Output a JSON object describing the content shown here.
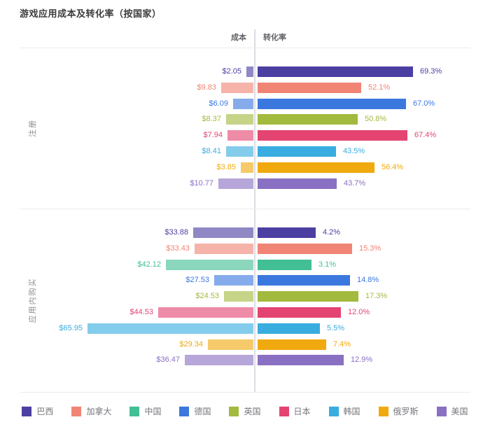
{
  "title": "游戏应用成本及转化率（按国家）",
  "header": {
    "cost": "成本",
    "conversion": "转化率"
  },
  "countries": {
    "巴西": "#4b3fa2",
    "加拿大": "#f08575",
    "中国": "#43bf96",
    "德国": "#3b78de",
    "英国": "#a2ba3e",
    "日本": "#e34471",
    "韩国": "#39ace0",
    "俄罗斯": "#f0a90f",
    "美国": "#8a70c2"
  },
  "legend": [
    "巴西",
    "加拿大",
    "中国",
    "德国",
    "英国",
    "日本",
    "韩国",
    "俄罗斯",
    "美国"
  ],
  "chart_data": {
    "type": "bar",
    "variant": "bidirectional-tornado",
    "title": "游戏应用成本及转化率（按国家）",
    "left_axis": {
      "label": "成本",
      "unit": "$",
      "direction": "right-to-left"
    },
    "right_axis": {
      "label": "转化率",
      "unit": "%",
      "direction": "left-to-right"
    },
    "grid": "section dividers only",
    "legend_position": "bottom-center",
    "sections": [
      {
        "label": "注册",
        "rows": [
          {
            "country": "巴西",
            "cost": 2.05,
            "cost_label": "$2.05",
            "conversion": 69.3,
            "conversion_label": "69.3%"
          },
          {
            "country": "加拿大",
            "cost": 9.83,
            "cost_label": "$9.83",
            "conversion": 52.1,
            "conversion_label": "52.1%"
          },
          {
            "country": "德国",
            "cost": 6.09,
            "cost_label": "$6.09",
            "conversion": 67.0,
            "conversion_label": "67.0%"
          },
          {
            "country": "英国",
            "cost": 8.37,
            "cost_label": "$8.37",
            "conversion": 50.8,
            "conversion_label": "50.8%"
          },
          {
            "country": "日本",
            "cost": 7.94,
            "cost_label": "$7.94",
            "conversion": 67.4,
            "conversion_label": "67.4%"
          },
          {
            "country": "韩国",
            "cost": 8.41,
            "cost_label": "$8.41",
            "conversion": 43.5,
            "conversion_label": "43.5%"
          },
          {
            "country": "俄罗斯",
            "cost": 3.85,
            "cost_label": "$3.85",
            "conversion": 56.4,
            "conversion_label": "56.4%"
          },
          {
            "country": "美国",
            "cost": 10.77,
            "cost_label": "$10.77",
            "conversion": 43.7,
            "conversion_label": "43.7%"
          }
        ],
        "scale": {
          "cost": {
            "m": 4.55,
            "b": 0.8
          },
          "conv": {
            "m": 4.26,
            "b": -73.5
          }
        }
      },
      {
        "label": "应用内购买",
        "rows": [
          {
            "country": "巴西",
            "cost": 33.88,
            "cost_label": "$33.88",
            "conversion": 4.2,
            "conversion_label": "4.2%"
          },
          {
            "country": "加拿大",
            "cost": 33.43,
            "cost_label": "$33.43",
            "conversion": 15.3,
            "conversion_label": "15.3%"
          },
          {
            "country": "中国",
            "cost": 42.12,
            "cost_label": "$42.12",
            "conversion": 3.1,
            "conversion_label": "3.1%"
          },
          {
            "country": "德国",
            "cost": 27.53,
            "cost_label": "$27.53",
            "conversion": 14.8,
            "conversion_label": "14.8%"
          },
          {
            "country": "英国",
            "cost": 24.53,
            "cost_label": "$24.53",
            "conversion": 17.3,
            "conversion_label": "17.3%"
          },
          {
            "country": "日本",
            "cost": 44.53,
            "cost_label": "$44.53",
            "conversion": 12.0,
            "conversion_label": "12.0%"
          },
          {
            "country": "韩国",
            "cost": 65.95,
            "cost_label": "$65.95",
            "conversion": 5.5,
            "conversion_label": "5.5%"
          },
          {
            "country": "俄罗斯",
            "cost": 29.34,
            "cost_label": "$29.34",
            "conversion": 7.4,
            "conversion_label": "7.4%"
          },
          {
            "country": "美国",
            "cost": 36.47,
            "cost_label": "$36.47",
            "conversion": 12.9,
            "conversion_label": "12.9%"
          }
        ],
        "scale": {
          "cost": {
            "m": 4.71,
            "b": -73.5
          },
          "conv": {
            "m": 4.69,
            "b": 62.9
          }
        }
      }
    ]
  }
}
